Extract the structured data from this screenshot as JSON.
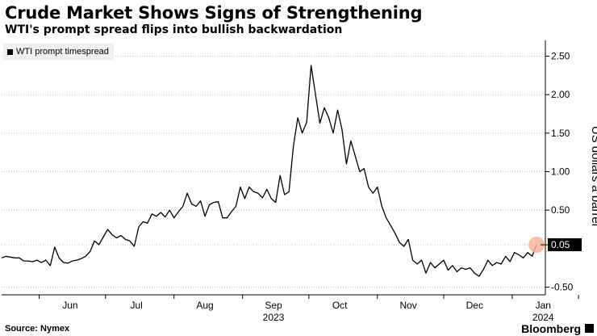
{
  "header": {
    "title": "Crude Market Shows Signs of Strengthening",
    "subtitle": "WTI's prompt spread flips into bullish backwardation"
  },
  "footer": {
    "source": "Source: Nymex",
    "brand": "Bloomberg"
  },
  "colors": {
    "line": "#000000",
    "marker": "#f7b59a",
    "grid": "#bbbbbb",
    "axis": "#000000",
    "legend_bg": "#f0f0f0"
  },
  "chart_data": {
    "type": "line",
    "title": "Crude Market Shows Signs of Strengthening",
    "subtitle": "WTI's prompt spread flips into bullish backwardation",
    "ylabel": "US dollars a barrel",
    "y_axis_side": "right",
    "ylim": [
      -0.6,
      2.6
    ],
    "yticks": [
      -0.5,
      0.05,
      0.5,
      1.0,
      1.5,
      2.0,
      2.5
    ],
    "ytick_labels": [
      "-0.50",
      "0.05",
      "0.50",
      "1.00",
      "1.50",
      "2.00",
      "2.50"
    ],
    "xlim": [
      "2023-05-15",
      "2024-01-16"
    ],
    "xticks": [
      {
        "date": "2023-06-01",
        "label": "Jun"
      },
      {
        "date": "2023-07-01",
        "label": "Jul"
      },
      {
        "date": "2023-08-01",
        "label": "Aug"
      },
      {
        "date": "2023-09-01",
        "label": "Sep"
      },
      {
        "date": "2023-10-01",
        "label": "Oct"
      },
      {
        "date": "2023-11-01",
        "label": "Nov"
      },
      {
        "date": "2023-12-01",
        "label": "Dec"
      },
      {
        "date": "2024-01-01",
        "label": "Jan"
      }
    ],
    "year_labels": [
      {
        "date": "2023-09-01",
        "label": "2023"
      },
      {
        "date": "2024-01-01",
        "label": "2024"
      }
    ],
    "grid": true,
    "legend_position": "top-left",
    "series": [
      {
        "name": "WTI prompt timespread",
        "highlight_last": "0.05",
        "points": [
          [
            "2023-05-15",
            -0.12
          ],
          [
            "2023-05-17",
            -0.1
          ],
          [
            "2023-05-19",
            -0.11
          ],
          [
            "2023-05-21",
            -0.12
          ],
          [
            "2023-05-23",
            -0.12
          ],
          [
            "2023-05-25",
            -0.16
          ],
          [
            "2023-05-27",
            -0.16
          ],
          [
            "2023-05-29",
            -0.17
          ],
          [
            "2023-05-31",
            -0.15
          ],
          [
            "2023-06-02",
            -0.18
          ],
          [
            "2023-06-04",
            -0.15
          ],
          [
            "2023-06-06",
            -0.22
          ],
          [
            "2023-06-08",
            0.02
          ],
          [
            "2023-06-10",
            -0.12
          ],
          [
            "2023-06-12",
            -0.18
          ],
          [
            "2023-06-14",
            -0.19
          ],
          [
            "2023-06-16",
            -0.16
          ],
          [
            "2023-06-18",
            -0.15
          ],
          [
            "2023-06-20",
            -0.13
          ],
          [
            "2023-06-22",
            -0.1
          ],
          [
            "2023-06-24",
            -0.04
          ],
          [
            "2023-06-26",
            0.1
          ],
          [
            "2023-06-28",
            0.05
          ],
          [
            "2023-06-30",
            0.15
          ],
          [
            "2023-07-02",
            0.25
          ],
          [
            "2023-07-04",
            0.18
          ],
          [
            "2023-07-06",
            0.14
          ],
          [
            "2023-07-08",
            0.17
          ],
          [
            "2023-07-10",
            0.12
          ],
          [
            "2023-07-12",
            0.1
          ],
          [
            "2023-07-14",
            0.03
          ],
          [
            "2023-07-16",
            0.28
          ],
          [
            "2023-07-18",
            0.35
          ],
          [
            "2023-07-20",
            0.33
          ],
          [
            "2023-07-22",
            0.45
          ],
          [
            "2023-07-24",
            0.42
          ],
          [
            "2023-07-26",
            0.47
          ],
          [
            "2023-07-28",
            0.41
          ],
          [
            "2023-07-30",
            0.5
          ],
          [
            "2023-08-01",
            0.4
          ],
          [
            "2023-08-03",
            0.48
          ],
          [
            "2023-08-05",
            0.55
          ],
          [
            "2023-08-07",
            0.72
          ],
          [
            "2023-08-09",
            0.58
          ],
          [
            "2023-08-11",
            0.55
          ],
          [
            "2023-08-13",
            0.62
          ],
          [
            "2023-08-15",
            0.42
          ],
          [
            "2023-08-17",
            0.57
          ],
          [
            "2023-08-19",
            0.6
          ],
          [
            "2023-08-21",
            0.61
          ],
          [
            "2023-08-23",
            0.4
          ],
          [
            "2023-08-25",
            0.4
          ],
          [
            "2023-08-27",
            0.48
          ],
          [
            "2023-08-29",
            0.55
          ],
          [
            "2023-08-31",
            0.8
          ],
          [
            "2023-09-02",
            0.65
          ],
          [
            "2023-09-04",
            0.8
          ],
          [
            "2023-09-06",
            0.74
          ],
          [
            "2023-09-08",
            0.72
          ],
          [
            "2023-09-10",
            0.66
          ],
          [
            "2023-09-12",
            0.77
          ],
          [
            "2023-09-14",
            0.65
          ],
          [
            "2023-09-16",
            0.6
          ],
          [
            "2023-09-18",
            0.95
          ],
          [
            "2023-09-20",
            0.7
          ],
          [
            "2023-09-22",
            0.74
          ],
          [
            "2023-09-24",
            1.33
          ],
          [
            "2023-09-26",
            1.7
          ],
          [
            "2023-09-28",
            1.5
          ],
          [
            "2023-09-30",
            1.64
          ],
          [
            "2023-10-02",
            2.38
          ],
          [
            "2023-10-04",
            2.0
          ],
          [
            "2023-10-06",
            1.63
          ],
          [
            "2023-10-08",
            1.83
          ],
          [
            "2023-10-10",
            1.7
          ],
          [
            "2023-10-12",
            1.5
          ],
          [
            "2023-10-14",
            1.8
          ],
          [
            "2023-10-16",
            1.55
          ],
          [
            "2023-10-18",
            1.1
          ],
          [
            "2023-10-20",
            1.4
          ],
          [
            "2023-10-22",
            1.2
          ],
          [
            "2023-10-24",
            1.0
          ],
          [
            "2023-10-26",
            1.04
          ],
          [
            "2023-10-28",
            0.8
          ],
          [
            "2023-10-30",
            0.72
          ],
          [
            "2023-11-01",
            0.8
          ],
          [
            "2023-11-03",
            0.55
          ],
          [
            "2023-11-05",
            0.4
          ],
          [
            "2023-11-07",
            0.3
          ],
          [
            "2023-11-09",
            0.2
          ],
          [
            "2023-11-11",
            0.08
          ],
          [
            "2023-11-13",
            0.03
          ],
          [
            "2023-11-15",
            0.12
          ],
          [
            "2023-11-17",
            -0.15
          ],
          [
            "2023-11-19",
            -0.2
          ],
          [
            "2023-11-21",
            -0.15
          ],
          [
            "2023-11-23",
            -0.32
          ],
          [
            "2023-11-25",
            -0.18
          ],
          [
            "2023-11-27",
            -0.25
          ],
          [
            "2023-11-29",
            -0.2
          ],
          [
            "2023-12-01",
            -0.15
          ],
          [
            "2023-12-03",
            -0.28
          ],
          [
            "2023-12-05",
            -0.22
          ],
          [
            "2023-12-07",
            -0.3
          ],
          [
            "2023-12-09",
            -0.25
          ],
          [
            "2023-12-11",
            -0.27
          ],
          [
            "2023-12-13",
            -0.25
          ],
          [
            "2023-12-15",
            -0.32
          ],
          [
            "2023-12-17",
            -0.36
          ],
          [
            "2023-12-19",
            -0.27
          ],
          [
            "2023-12-21",
            -0.15
          ],
          [
            "2023-12-23",
            -0.22
          ],
          [
            "2023-12-25",
            -0.18
          ],
          [
            "2023-12-27",
            -0.2
          ],
          [
            "2023-12-29",
            -0.1
          ],
          [
            "2023-12-31",
            -0.17
          ],
          [
            "2024-01-02",
            -0.05
          ],
          [
            "2024-01-04",
            -0.08
          ],
          [
            "2024-01-06",
            -0.12
          ],
          [
            "2024-01-08",
            -0.05
          ],
          [
            "2024-01-10",
            -0.1
          ],
          [
            "2024-01-12",
            0.05
          ]
        ]
      }
    ]
  }
}
